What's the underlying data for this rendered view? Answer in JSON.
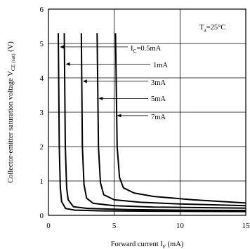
{
  "chart_data": {
    "type": "line",
    "xlabel": "Forward current I",
    "xlabel_sub": "F",
    "xlabel_unit": " (mA)",
    "ylabel": "Collector-emitter saturation voltage V",
    "ylabel_sub": "CE (sat)",
    "ylabel_unit": " (V)",
    "xlim": [
      0,
      15
    ],
    "ylim": [
      0,
      6
    ],
    "xticks": [
      "0",
      "5",
      "10",
      "15"
    ],
    "yticks": [
      "0",
      "1",
      "2",
      "3",
      "4",
      "5",
      "6"
    ],
    "grid": true,
    "condition": {
      "main": "T",
      "sub": "a",
      "rest": "=25°C"
    },
    "series": [
      {
        "name": "I",
        "name_sub": "C",
        "name_rest": "=0.5mA",
        "points": [
          [
            0.75,
            5.3
          ],
          [
            0.82,
            2.0
          ],
          [
            0.9,
            0.8
          ],
          [
            1.0,
            0.4
          ],
          [
            1.3,
            0.2
          ],
          [
            2,
            0.15
          ],
          [
            4,
            0.13
          ],
          [
            8,
            0.12
          ],
          [
            15,
            0.11
          ]
        ]
      },
      {
        "name": "1mA",
        "points": [
          [
            1.2,
            5.3
          ],
          [
            1.28,
            2.0
          ],
          [
            1.38,
            0.8
          ],
          [
            1.5,
            0.45
          ],
          [
            1.9,
            0.25
          ],
          [
            3,
            0.2
          ],
          [
            6,
            0.17
          ],
          [
            10,
            0.15
          ],
          [
            15,
            0.14
          ]
        ]
      },
      {
        "name": "3mA",
        "points": [
          [
            2.5,
            5.3
          ],
          [
            2.58,
            2.0
          ],
          [
            2.7,
            0.9
          ],
          [
            2.9,
            0.5
          ],
          [
            3.4,
            0.35
          ],
          [
            5,
            0.28
          ],
          [
            8,
            0.24
          ],
          [
            15,
            0.21
          ]
        ]
      },
      {
        "name": "5mA",
        "points": [
          [
            3.7,
            5.3
          ],
          [
            3.8,
            2.0
          ],
          [
            3.95,
            0.95
          ],
          [
            4.2,
            0.6
          ],
          [
            5,
            0.45
          ],
          [
            7,
            0.38
          ],
          [
            10,
            0.33
          ],
          [
            15,
            0.28
          ]
        ]
      },
      {
        "name": "7mA",
        "points": [
          [
            5.1,
            5.3
          ],
          [
            5.22,
            2.0
          ],
          [
            5.4,
            1.1
          ],
          [
            5.7,
            0.8
          ],
          [
            6.5,
            0.65
          ],
          [
            8,
            0.55
          ],
          [
            11,
            0.45
          ],
          [
            15,
            0.36
          ]
        ]
      }
    ]
  }
}
